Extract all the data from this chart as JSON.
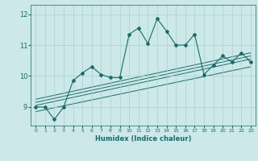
{
  "xlabel": "Humidex (Indice chaleur)",
  "bg_color": "#cce8e8",
  "line_color": "#1a6b6b",
  "x_values": [
    0,
    1,
    2,
    3,
    4,
    5,
    6,
    7,
    8,
    9,
    10,
    11,
    12,
    13,
    14,
    15,
    16,
    17,
    18,
    19,
    20,
    21,
    22,
    23
  ],
  "y_values": [
    9.0,
    9.0,
    8.6,
    9.0,
    9.85,
    10.1,
    10.3,
    10.05,
    9.95,
    9.95,
    11.35,
    11.55,
    11.05,
    11.85,
    11.45,
    11.0,
    11.0,
    11.35,
    10.05,
    10.35,
    10.65,
    10.45,
    10.75,
    10.45
  ],
  "ylim": [
    8.4,
    12.3
  ],
  "xlim": [
    -0.5,
    23.5
  ],
  "yticks": [
    9,
    10,
    11,
    12
  ],
  "xticks": [
    0,
    1,
    2,
    3,
    4,
    5,
    6,
    7,
    8,
    9,
    10,
    11,
    12,
    13,
    14,
    15,
    16,
    17,
    18,
    19,
    20,
    21,
    22,
    23
  ],
  "grid_color": "#aad0d0",
  "regression_lines": [
    {
      "x0": 0,
      "y0": 9.05,
      "x1": 23,
      "y1": 10.55
    },
    {
      "x0": 0,
      "y0": 8.85,
      "x1": 23,
      "y1": 10.3
    },
    {
      "x0": 0,
      "y0": 9.15,
      "x1": 23,
      "y1": 10.65
    },
    {
      "x0": 0,
      "y0": 9.25,
      "x1": 23,
      "y1": 10.75
    }
  ]
}
